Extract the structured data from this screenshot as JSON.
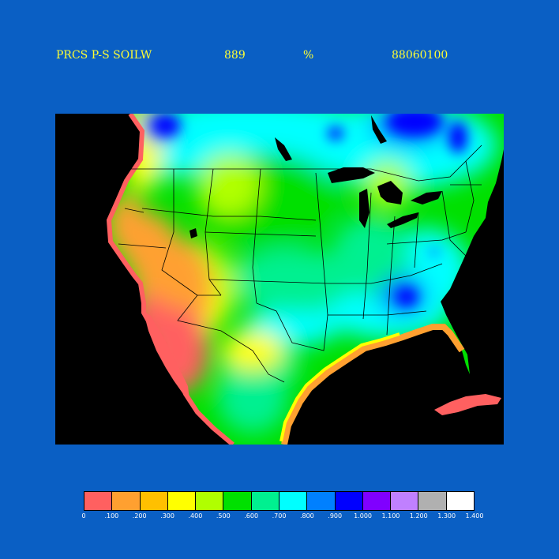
{
  "header": {
    "variable": "PRCS P-S SOILW",
    "level": "889",
    "unit": "%",
    "time": "88060100"
  },
  "colors": {
    "background": "#0a5fc4",
    "header_text": "#ffff33",
    "water": "#000000",
    "boundary": "#000000"
  },
  "legend": {
    "colors": [
      "#ff6060",
      "#ffa030",
      "#ffc000",
      "#ffff00",
      "#b0ff00",
      "#00e000",
      "#00f090",
      "#00ffff",
      "#0080ff",
      "#0000ff",
      "#8000ff",
      "#c080ff",
      "#b0b0b0",
      "#ffffff"
    ],
    "ticks": [
      "0",
      ".100",
      ".200",
      ".300",
      ".400",
      ".500",
      ".600",
      ".700",
      ".800",
      ".900",
      "1.000",
      "1.100",
      "1.200",
      "1.300",
      "1.400"
    ]
  }
}
